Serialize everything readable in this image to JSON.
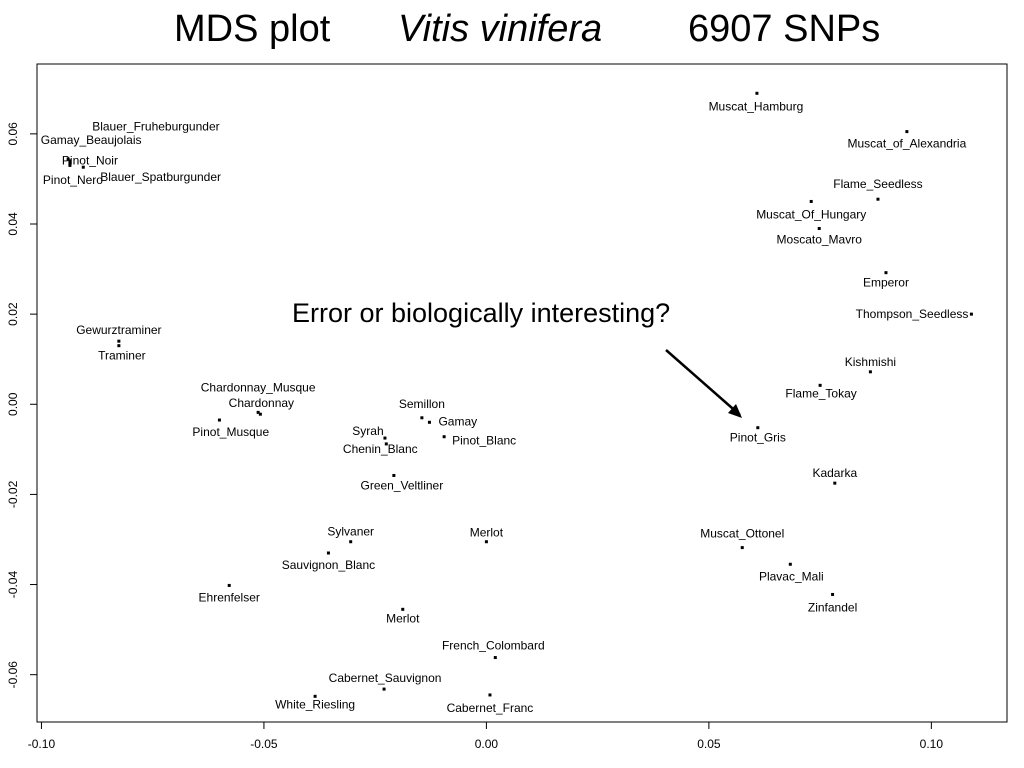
{
  "title": {
    "part1": "MDS plot",
    "part2": "Vitis vinifera",
    "part3": "6907 SNPs"
  },
  "annotation": "Error or biologically interesting?",
  "chart_data": {
    "type": "scatter",
    "xlabel": "",
    "ylabel": "",
    "xlim": [
      -0.101,
      0.117
    ],
    "ylim": [
      -0.0705,
      0.0755
    ],
    "x_ticks": [
      "-0.10",
      "-0.05",
      "0.00",
      "0.05",
      "0.10"
    ],
    "x_tick_values": [
      -0.1,
      -0.05,
      0.0,
      0.05,
      0.1
    ],
    "y_ticks": [
      "-0.06",
      "-0.04",
      "-0.02",
      "0.00",
      "0.02",
      "0.04",
      "0.06"
    ],
    "y_tick_values": [
      -0.06,
      -0.04,
      -0.02,
      0.0,
      0.02,
      0.04,
      0.06
    ],
    "grid": false,
    "points": [
      {
        "label": "Blauer_Fruheburgunder",
        "x": -0.0936,
        "y": 0.0536
      },
      {
        "label": "Gamay_Beaujolais",
        "x": -0.094,
        "y": 0.0544
      },
      {
        "label": "Pinot_Noir",
        "x": -0.0936,
        "y": 0.053
      },
      {
        "label": "Blauer_Spatburgunder",
        "x": -0.0906,
        "y": 0.0526
      },
      {
        "label": "Pinot_Nero",
        "x": -0.0936,
        "y": 0.054
      },
      {
        "label": "Gewurztraminer",
        "x": -0.0826,
        "y": 0.014
      },
      {
        "label": "Traminer",
        "x": -0.0826,
        "y": 0.013
      },
      {
        "label": "Chardonnay_Musque",
        "x": -0.0513,
        "y": -0.0018
      },
      {
        "label": "Chardonnay",
        "x": -0.0508,
        "y": -0.0022
      },
      {
        "label": "Pinot_Musque",
        "x": -0.06,
        "y": -0.0035
      },
      {
        "label": "Semillon",
        "x": -0.0145,
        "y": -0.003
      },
      {
        "label": "Gamay",
        "x": -0.0128,
        "y": -0.004
      },
      {
        "label": "Syrah",
        "x": -0.0228,
        "y": -0.0075
      },
      {
        "label": "Pinot_Blanc",
        "x": -0.0095,
        "y": -0.0072
      },
      {
        "label": "Chenin_Blanc",
        "x": -0.0225,
        "y": -0.0088
      },
      {
        "label": "Green_Veltliner",
        "x": -0.0208,
        "y": -0.0158
      },
      {
        "label": "Sylvaner",
        "x": -0.0305,
        "y": -0.0305
      },
      {
        "label": "Merlot",
        "x": 0.0,
        "y": -0.0305
      },
      {
        "label": "Sauvignon_Blanc",
        "x": -0.0355,
        "y": -0.033
      },
      {
        "label": "Ehrenfelser",
        "x": -0.0578,
        "y": -0.0402
      },
      {
        "label": "Merlot",
        "x": -0.0188,
        "y": -0.0455
      },
      {
        "label": "French_Colombard",
        "x": 0.002,
        "y": -0.0562
      },
      {
        "label": "Cabernet_Sauvignon",
        "x": -0.023,
        "y": -0.0632
      },
      {
        "label": "White_Riesling",
        "x": -0.0385,
        "y": -0.0648
      },
      {
        "label": "Cabernet_Franc",
        "x": 0.0008,
        "y": -0.0645
      },
      {
        "label": "Muscat_Hamburg",
        "x": 0.0608,
        "y": 0.069
      },
      {
        "label": "Muscat_of_Alexandria",
        "x": 0.0945,
        "y": 0.0605
      },
      {
        "label": "Flame_Seedless",
        "x": 0.088,
        "y": 0.0455
      },
      {
        "label": "Muscat_Of_Hungary",
        "x": 0.073,
        "y": 0.045
      },
      {
        "label": "Moscato_Mavro",
        "x": 0.0748,
        "y": 0.039
      },
      {
        "label": "Emperor",
        "x": 0.0898,
        "y": 0.0292
      },
      {
        "label": "Thompson_Seedless",
        "x": 0.109,
        "y": 0.02
      },
      {
        "label": "Kishmishi",
        "x": 0.0863,
        "y": 0.0072
      },
      {
        "label": "Flame_Tokay",
        "x": 0.075,
        "y": 0.0042
      },
      {
        "label": "Pinot_Gris",
        "x": 0.061,
        "y": -0.0052
      },
      {
        "label": "Kadarka",
        "x": 0.0783,
        "y": -0.0175
      },
      {
        "label": "Muscat_Ottonel",
        "x": 0.0575,
        "y": -0.0318
      },
      {
        "label": "Plavac_Mali",
        "x": 0.0683,
        "y": -0.0355
      },
      {
        "label": "Zinfandel",
        "x": 0.0778,
        "y": -0.0422
      }
    ]
  }
}
